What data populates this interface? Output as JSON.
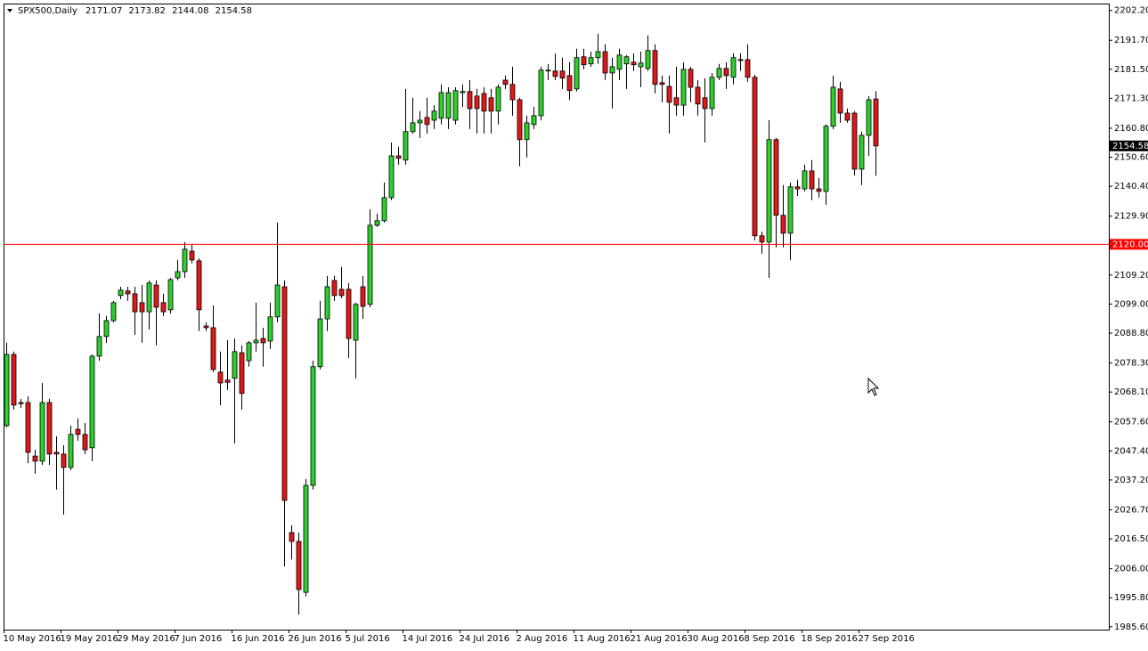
{
  "chart_data": {
    "type": "candlestick",
    "title": "SPX500,Daily",
    "categories": [
      "10 May 2016",
      null,
      null,
      null,
      null,
      null,
      null,
      null,
      "19 May 2016",
      null,
      null,
      null,
      null,
      null,
      null,
      null,
      "29 May 2016",
      null,
      null,
      null,
      null,
      null,
      null,
      null,
      "7 Jun 2016",
      null,
      null,
      null,
      null,
      null,
      null,
      null,
      "16 Jun 2016",
      null,
      null,
      null,
      null,
      null,
      null,
      null,
      "26 Jun 2016",
      null,
      null,
      null,
      null,
      null,
      null,
      null,
      "5 Jul 2016",
      null,
      null,
      null,
      null,
      null,
      null,
      null,
      "14 Jul 2016",
      null,
      null,
      null,
      null,
      null,
      null,
      null,
      "24 Jul 2016",
      null,
      null,
      null,
      null,
      null,
      null,
      null,
      "2 Aug 2016",
      null,
      null,
      null,
      null,
      null,
      null,
      null,
      "11 Aug 2016",
      null,
      null,
      null,
      null,
      null,
      null,
      null,
      "21 Aug 2016",
      null,
      null,
      null,
      null,
      null,
      null,
      null,
      "30 Aug 2016",
      null,
      null,
      null,
      null,
      null,
      null,
      null,
      "8 Sep 2016",
      null,
      null,
      null,
      null,
      null,
      null,
      null,
      "18 Sep 2016",
      null,
      null,
      null,
      null,
      null,
      null,
      null,
      "27 Sep 2016",
      null,
      null
    ],
    "open": [
      2056.3,
      2081.3,
      2064.4,
      2064.4,
      2045.6,
      2043.8,
      2064.4,
      2046.9,
      2046.3,
      2041.6,
      2055.0,
      2053.2,
      2048.5,
      2080.7,
      2087.6,
      2093.2,
      2102.0,
      2103.6,
      2102.6,
      2099.5,
      2096.3,
      2105.7,
      2099.5,
      2097.0,
      2108.2,
      2110.4,
      2117.6,
      2114.2,
      2091.3,
      2090.7,
      2075.1,
      2072.3,
      2072.9,
      2081.9,
      2079.1,
      2085.4,
      2086.9,
      2086.0,
      2094.5,
      2105.1,
      2018.7,
      2015.6,
      1997.7,
      2035.3,
      2077.0,
      2093.8,
      2107.3,
      2104.2,
      2104.2,
      2086.3,
      2105.1,
      2098.9,
      2126.7,
      2128.3,
      2136.4,
      2151.1,
      2149.6,
      2159.6,
      2162.7,
      2164.6,
      2163.6,
      2164.3,
      2164.3,
      2163.6,
      2173.3,
      2173.7,
      2172.1,
      2173.0,
      2171.5,
      2166.8,
      2177.7,
      2176.2,
      2170.8,
      2156.8,
      2162.1,
      2165.2,
      2180.9,
      2180.9,
      2180.9,
      2179.3,
      2174.6,
      2185.9,
      2183.4,
      2185.6,
      2187.7,
      2180.2,
      2181.5,
      2183.4,
      2184.0,
      2182.4,
      2181.8,
      2188.1,
      2176.8,
      2175.5,
      2171.5,
      2168.9,
      2181.5,
      2175.2,
      2171.5,
      2167.7,
      2178.7,
      2181.8,
      2178.7,
      2184.9,
      2184.9,
      2178.7,
      2123.0,
      2120.8,
      2156.8,
      2130.2,
      2123.9,
      2140.2,
      2139.5,
      2145.8,
      2139.5,
      2138.6,
      2161.5,
      2174.6,
      2166.1,
      2166.1,
      2146.4,
      2158.3,
      2171.07
    ],
    "high": [
      2085.4,
      2082.3,
      2065.7,
      2066.6,
      2047.8,
      2071.3,
      2065.7,
      2052.5,
      2049.4,
      2056.3,
      2058.8,
      2057.2,
      2081.3,
      2095.7,
      2094.8,
      2100.1,
      2105.1,
      2105.1,
      2105.1,
      2105.7,
      2107.3,
      2107.3,
      2102.6,
      2108.2,
      2114.5,
      2120.8,
      2119.8,
      2115.1,
      2092.6,
      2098.5,
      2082.3,
      2086.3,
      2086.9,
      2084.5,
      2086.0,
      2099.5,
      2090.7,
      2099.5,
      2127.6,
      2107.3,
      2021.2,
      2018.7,
      2037.5,
      2079.1,
      2100.1,
      2108.9,
      2108.9,
      2112.0,
      2106.4,
      2099.5,
      2108.9,
      2132.3,
      2130.8,
      2141.7,
      2155.8,
      2154.3,
      2174.6,
      2171.5,
      2166.8,
      2171.5,
      2168.9,
      2176.2,
      2175.2,
      2175.2,
      2176.2,
      2177.7,
      2174.6,
      2175.2,
      2174.6,
      2176.2,
      2179.3,
      2182.4,
      2171.5,
      2165.2,
      2168.3,
      2182.4,
      2183.4,
      2187.1,
      2185.6,
      2184.0,
      2188.7,
      2188.7,
      2187.7,
      2194.0,
      2190.3,
      2185.6,
      2188.7,
      2186.5,
      2187.1,
      2187.7,
      2193.4,
      2190.3,
      2179.3,
      2179.3,
      2182.4,
      2184.0,
      2182.4,
      2177.7,
      2178.4,
      2180.2,
      2183.4,
      2184.0,
      2187.1,
      2187.1,
      2190.3,
      2179.6,
      2124.5,
      2163.6,
      2157.4,
      2140.8,
      2141.7,
      2142.7,
      2148.0,
      2149.6,
      2143.3,
      2162.1,
      2179.3,
      2177.1,
      2167.7,
      2166.8,
      2159.6,
      2172.1,
      2173.82
    ],
    "low": [
      2055.7,
      2061.9,
      2062.5,
      2043.1,
      2039.4,
      2042.5,
      2042.5,
      2033.8,
      2025.0,
      2040.6,
      2051.0,
      2046.3,
      2043.8,
      2079.1,
      2085.4,
      2092.6,
      2100.7,
      2100.1,
      2088.2,
      2085.4,
      2090.1,
      2084.5,
      2094.8,
      2095.7,
      2107.3,
      2108.2,
      2113.3,
      2089.5,
      2089.5,
      2075.1,
      2063.5,
      2068.8,
      2050.0,
      2061.9,
      2077.0,
      2082.3,
      2077.0,
      2083.2,
      2092.6,
      2006.8,
      2009.3,
      1989.9,
      1996.2,
      2033.8,
      2076.0,
      2089.5,
      2100.1,
      2101.0,
      2080.1,
      2072.9,
      2093.8,
      2097.9,
      2126.1,
      2127.6,
      2135.5,
      2148.0,
      2148.0,
      2158.9,
      2157.4,
      2158.9,
      2160.5,
      2162.1,
      2160.5,
      2162.1,
      2168.3,
      2160.5,
      2158.9,
      2158.9,
      2158.9,
      2162.1,
      2174.6,
      2165.2,
      2147.4,
      2150.5,
      2160.5,
      2163.6,
      2177.7,
      2177.7,
      2174.6,
      2170.8,
      2173.7,
      2181.5,
      2182.4,
      2183.4,
      2177.7,
      2167.7,
      2177.7,
      2174.6,
      2180.9,
      2175.2,
      2180.9,
      2173.0,
      2169.9,
      2158.9,
      2165.2,
      2165.2,
      2169.9,
      2165.2,
      2155.8,
      2165.2,
      2177.7,
      2174.6,
      2176.2,
      2180.9,
      2177.1,
      2121.4,
      2116.7,
      2108.2,
      2118.9,
      2118.9,
      2114.5,
      2137.0,
      2138.6,
      2135.5,
      2136.4,
      2133.9,
      2160.5,
      2162.7,
      2162.7,
      2144.2,
      2140.8,
      2151.1,
      2144.08
    ],
    "close": [
      2081.3,
      2063.5,
      2064.0,
      2046.9,
      2043.8,
      2064.4,
      2046.3,
      2046.3,
      2041.6,
      2053.2,
      2053.2,
      2047.8,
      2080.7,
      2087.6,
      2093.2,
      2099.5,
      2103.9,
      2102.6,
      2096.3,
      2096.3,
      2106.4,
      2097.9,
      2096.3,
      2107.6,
      2110.4,
      2118.3,
      2114.5,
      2097.0,
      2090.7,
      2076.0,
      2071.3,
      2071.5,
      2082.3,
      2067.6,
      2085.4,
      2086.3,
      2085.4,
      2094.5,
      2105.7,
      2030.0,
      2015.6,
      1998.7,
      2035.3,
      2077.0,
      2093.8,
      2105.1,
      2102.0,
      2102.0,
      2086.9,
      2098.9,
      2098.2,
      2126.7,
      2128.3,
      2136.4,
      2151.1,
      2150.2,
      2159.6,
      2162.7,
      2163.6,
      2162.1,
      2166.8,
      2173.3,
      2173.3,
      2174.0,
      2173.7,
      2167.7,
      2167.7,
      2166.8,
      2166.8,
      2175.2,
      2176.2,
      2170.8,
      2156.8,
      2162.7,
      2165.2,
      2181.2,
      2181.2,
      2179.0,
      2178.4,
      2174.0,
      2185.6,
      2183.1,
      2185.6,
      2187.7,
      2180.2,
      2182.4,
      2186.5,
      2185.9,
      2183.1,
      2183.7,
      2188.1,
      2176.2,
      2176.2,
      2169.9,
      2168.9,
      2181.5,
      2175.2,
      2169.3,
      2167.7,
      2178.7,
      2181.8,
      2179.3,
      2185.6,
      2184.6,
      2178.7,
      2123.0,
      2120.8,
      2156.8,
      2130.2,
      2123.9,
      2140.2,
      2139.5,
      2145.8,
      2139.5,
      2138.6,
      2161.5,
      2175.2,
      2166.1,
      2163.6,
      2146.4,
      2158.3,
      2170.8,
      2154.58
    ],
    "up_color": "#2ccf2c",
    "down_color": "#e01818",
    "ylim": [
      1984.6,
      2204.6
    ],
    "yticks": [
      {
        "value": 2202.2,
        "label": "2202.20"
      },
      {
        "value": 2191.7,
        "label": "2191.70"
      },
      {
        "value": 2181.5,
        "label": "2181.50"
      },
      {
        "value": 2171.3,
        "label": "2171.30"
      },
      {
        "value": 2160.8,
        "label": "2160.80"
      },
      {
        "value": 2150.6,
        "label": "2150.60"
      },
      {
        "value": 2140.4,
        "label": "2140.40"
      },
      {
        "value": 2129.9,
        "label": "2129.90"
      },
      {
        "value": 2109.2,
        "label": "2109.20"
      },
      {
        "value": 2099,
        "label": "2099.00"
      },
      {
        "value": 2088.8,
        "label": "2088.80"
      },
      {
        "value": 2078.3,
        "label": "2078.30"
      },
      {
        "value": 2068.1,
        "label": "2068.10"
      },
      {
        "value": 2057.6,
        "label": "2057.60"
      },
      {
        "value": 2047.4,
        "label": "2047.40"
      },
      {
        "value": 2037.2,
        "label": "2037.20"
      },
      {
        "value": 2026.7,
        "label": "2026.70"
      },
      {
        "value": 2016.5,
        "label": "2016.50"
      },
      {
        "value": 2006,
        "label": "2006.00"
      },
      {
        "value": 1995.8,
        "label": "1995.80"
      },
      {
        "value": 1985.6,
        "label": "1985.60"
      }
    ],
    "hline": {
      "value": 2120,
      "label": "2120.00",
      "color": "#ff0000"
    }
  }
}
